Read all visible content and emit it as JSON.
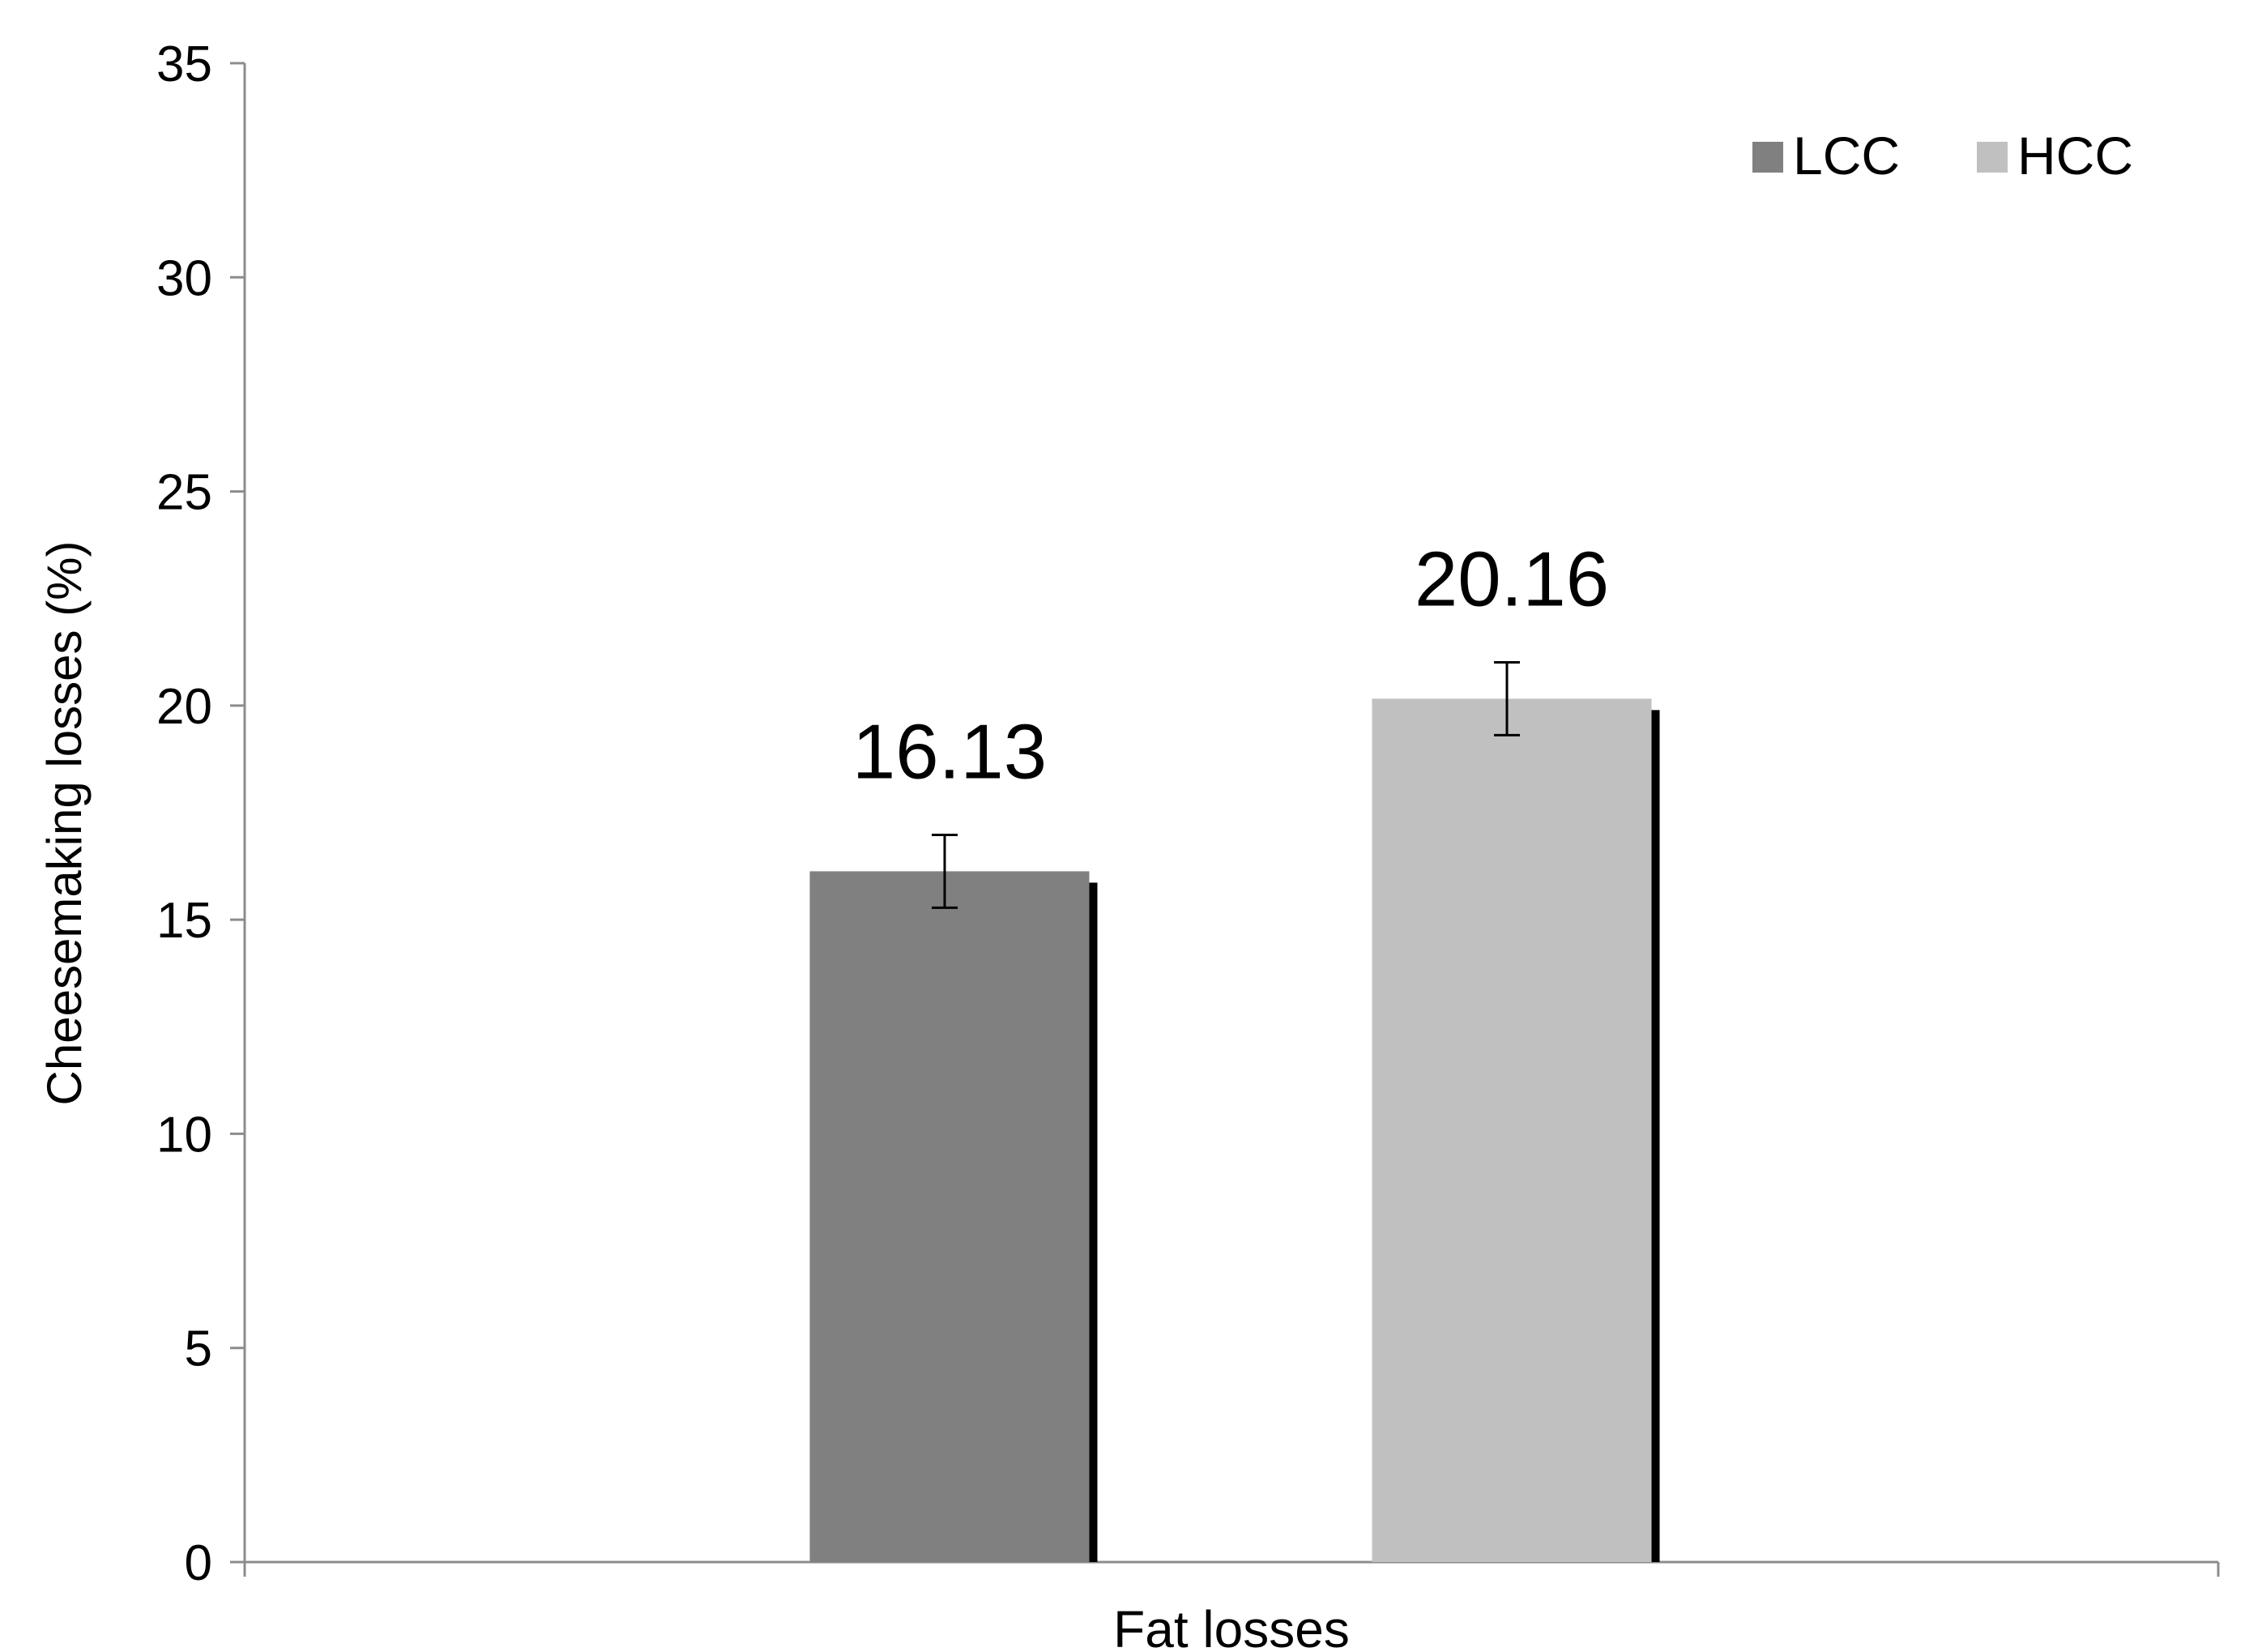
{
  "chart_data": {
    "type": "bar",
    "title": "",
    "categories": [
      "Fat losses"
    ],
    "xlabel": "",
    "ylabel": "Cheesemaking  losses (%)",
    "ylim": [
      0,
      35
    ],
    "yticks": [
      0,
      5,
      10,
      15,
      20,
      25,
      30,
      35
    ],
    "grid": false,
    "legend_position": "top-right",
    "series": [
      {
        "name": "LCC",
        "values": [
          16.13
        ],
        "error": [
          0.85
        ],
        "color": "#808080",
        "data_label": "16.13"
      },
      {
        "name": "HCC",
        "values": [
          20.16
        ],
        "error": [
          0.85
        ],
        "color": "#c0c0c0",
        "data_label": "20.16"
      }
    ]
  }
}
